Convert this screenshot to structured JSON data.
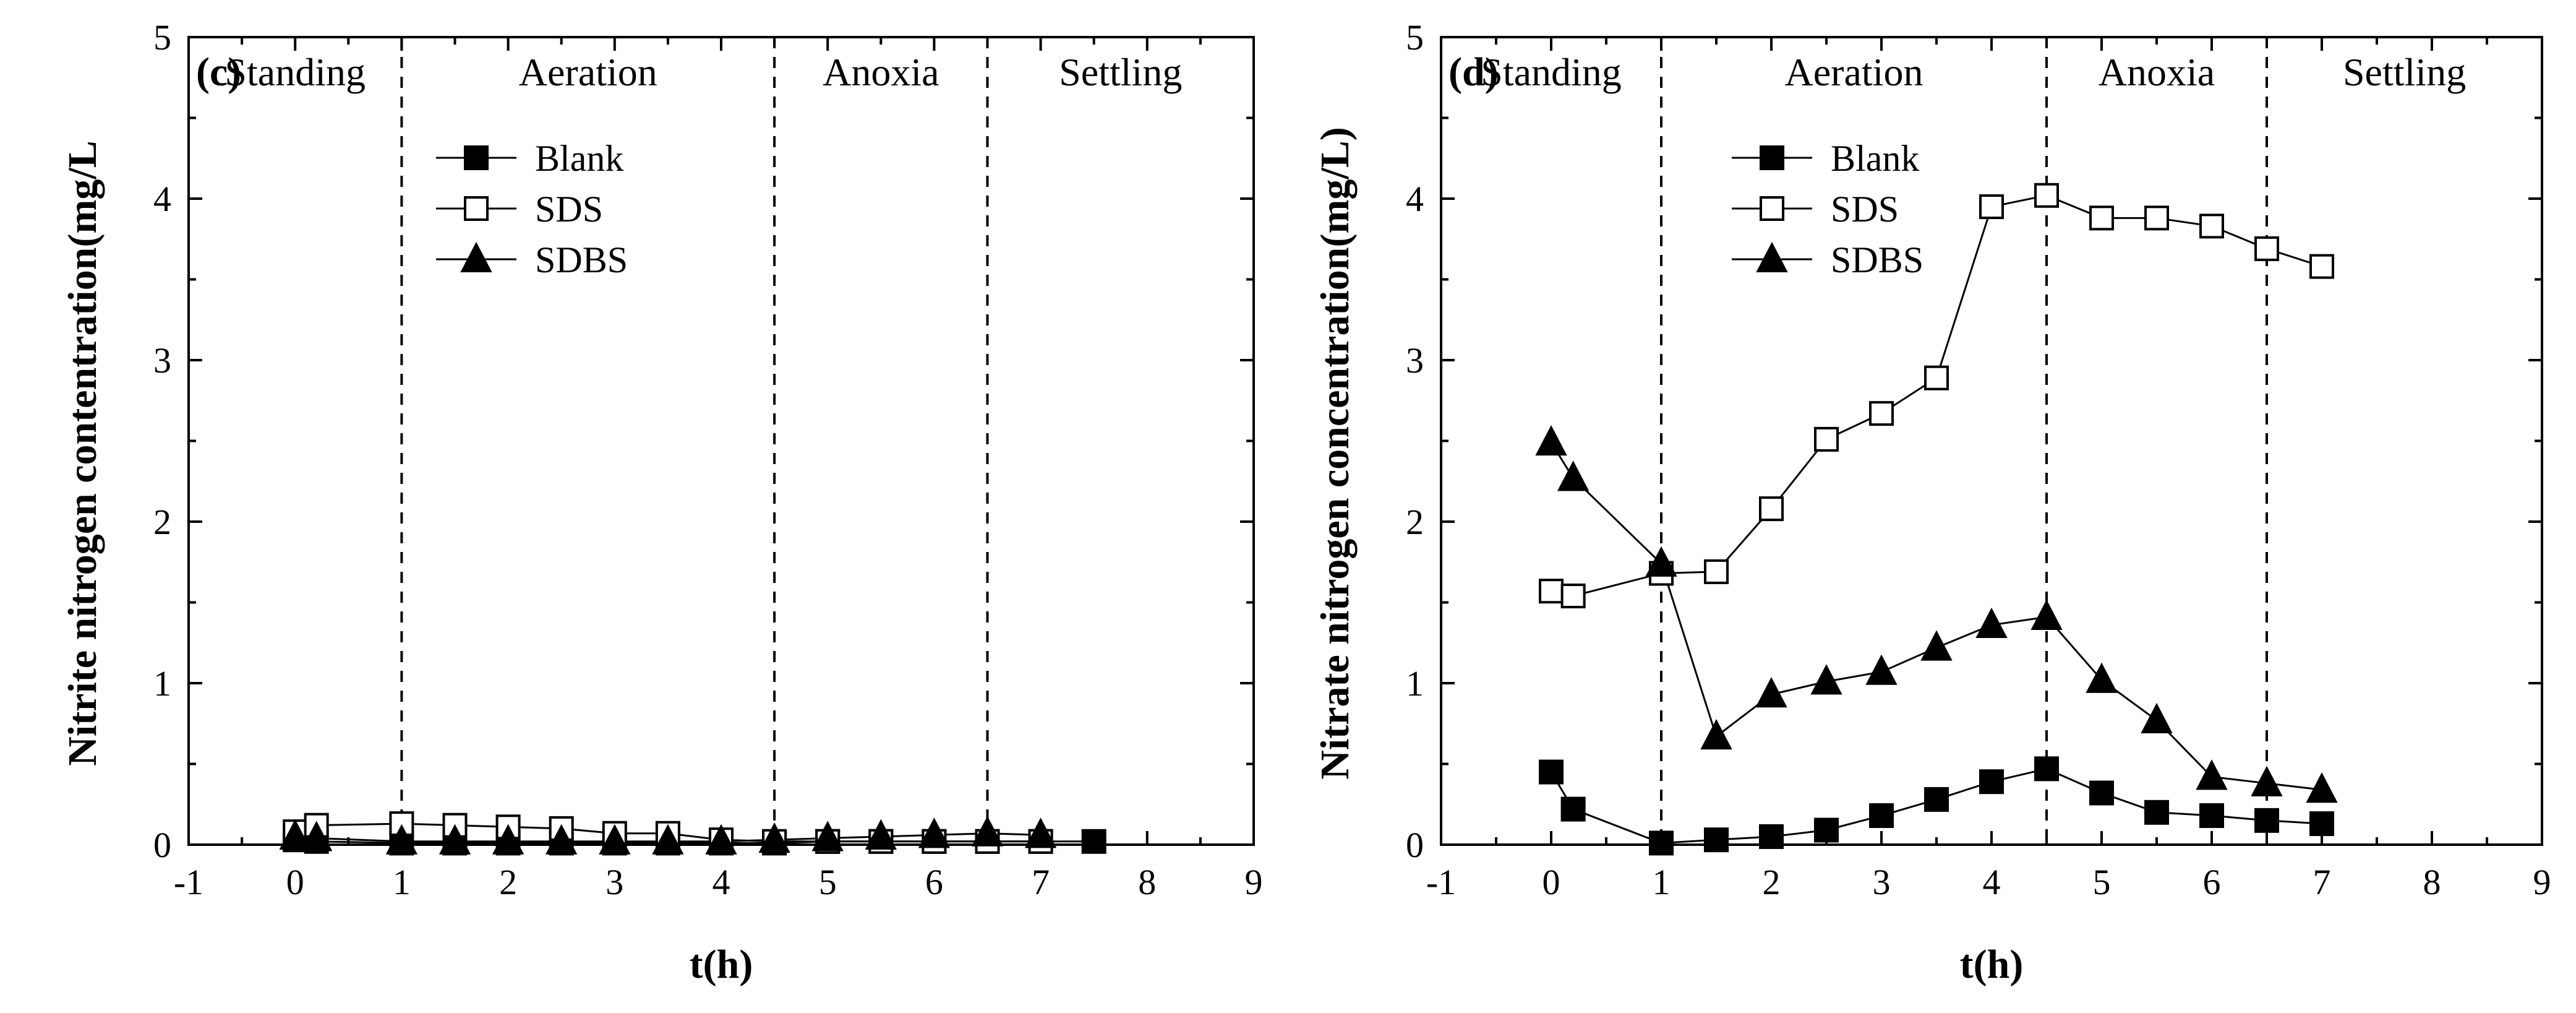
{
  "chart_data": [
    {
      "id": "c",
      "type": "line",
      "panel_label": "(c)",
      "xlabel": "t(h)",
      "ylabel": "Nitrite nitrogen contentration(mg/L",
      "xlim": [
        -1,
        9
      ],
      "ylim": [
        0,
        5
      ],
      "x_ticks": [
        -1,
        0,
        1,
        2,
        3,
        4,
        5,
        6,
        7,
        8,
        9
      ],
      "y_ticks": [
        0,
        1,
        2,
        3,
        4,
        5
      ],
      "phase_dividers": [
        1,
        4.5,
        6.5
      ],
      "phases": [
        {
          "label": "Standing",
          "x": 0
        },
        {
          "label": "Aeration",
          "x": 2.75
        },
        {
          "label": "Anoxia",
          "x": 5.5
        },
        {
          "label": "Settling",
          "x": 7.75
        }
      ],
      "legend_position": "upper-middle",
      "series": [
        {
          "name": "Blank",
          "marker": "filled-square",
          "x": [
            0,
            0.2,
            1,
            1.5,
            2,
            2.5,
            3,
            3.5,
            4,
            4.5,
            5,
            5.5,
            6,
            6.5,
            7,
            7.5
          ],
          "y": [
            0.03,
            0.02,
            0.01,
            0.01,
            0.01,
            0.01,
            0.01,
            0.01,
            0.01,
            0.01,
            0.02,
            0.02,
            0.02,
            0.02,
            0.02,
            0.02
          ]
        },
        {
          "name": "SDS",
          "marker": "open-square",
          "x": [
            0,
            0.2,
            1,
            1.5,
            2,
            2.5,
            3,
            3.5,
            4,
            4.5,
            5,
            5.5,
            6,
            6.5,
            7
          ],
          "y": [
            0.08,
            0.12,
            0.13,
            0.12,
            0.11,
            0.1,
            0.07,
            0.07,
            0.03,
            0.02,
            0.02,
            0.02,
            0.02,
            0.02,
            0.02
          ]
        },
        {
          "name": "SDBS",
          "marker": "filled-triangle",
          "x": [
            0,
            0.2,
            1,
            1.5,
            2,
            2.5,
            3,
            3.5,
            4,
            4.5,
            5,
            5.5,
            6,
            6.5,
            7
          ],
          "y": [
            0.05,
            0.04,
            0.02,
            0.02,
            0.02,
            0.02,
            0.02,
            0.02,
            0.02,
            0.03,
            0.04,
            0.05,
            0.06,
            0.07,
            0.06
          ]
        }
      ]
    },
    {
      "id": "d",
      "type": "line",
      "panel_label": "(d)",
      "xlabel": "t(h)",
      "ylabel": "Nitrate nitrogen concentration(mg/L)",
      "xlim": [
        -1,
        9
      ],
      "ylim": [
        0,
        5
      ],
      "x_ticks": [
        -1,
        0,
        1,
        2,
        3,
        4,
        5,
        6,
        7,
        8,
        9
      ],
      "y_ticks": [
        0,
        1,
        2,
        3,
        4,
        5
      ],
      "phase_dividers": [
        1,
        4.5,
        6.5
      ],
      "phases": [
        {
          "label": "Standing",
          "x": 0
        },
        {
          "label": "Aeration",
          "x": 2.75
        },
        {
          "label": "Anoxia",
          "x": 5.5
        },
        {
          "label": "Settling",
          "x": 7.75
        }
      ],
      "legend_position": "upper-left",
      "series": [
        {
          "name": "Blank",
          "marker": "filled-square",
          "x": [
            0,
            0.2,
            1,
            1.5,
            2,
            2.5,
            3,
            3.5,
            4,
            4.5,
            5,
            5.5,
            6,
            6.5,
            7
          ],
          "y": [
            0.45,
            0.22,
            0.01,
            0.03,
            0.05,
            0.09,
            0.18,
            0.28,
            0.39,
            0.47,
            0.32,
            0.2,
            0.18,
            0.15,
            0.13
          ]
        },
        {
          "name": "SDS",
          "marker": "open-square",
          "x": [
            0,
            0.2,
            1,
            1.5,
            2,
            2.5,
            3,
            3.5,
            4,
            4.5,
            5,
            5.5,
            6,
            6.5,
            7
          ],
          "y": [
            1.57,
            1.54,
            1.68,
            1.69,
            2.08,
            2.51,
            2.67,
            2.89,
            3.95,
            4.02,
            3.88,
            3.88,
            3.83,
            3.69,
            3.58
          ]
        },
        {
          "name": "SDBS",
          "marker": "filled-triangle",
          "x": [
            0,
            0.2,
            1,
            1.5,
            2,
            2.5,
            3,
            3.5,
            4,
            4.5,
            5,
            5.5,
            6,
            6.5,
            7
          ],
          "y": [
            2.49,
            2.27,
            1.74,
            0.67,
            0.93,
            1.01,
            1.07,
            1.22,
            1.36,
            1.41,
            1.02,
            0.77,
            0.42,
            0.38,
            0.34
          ]
        }
      ]
    }
  ]
}
